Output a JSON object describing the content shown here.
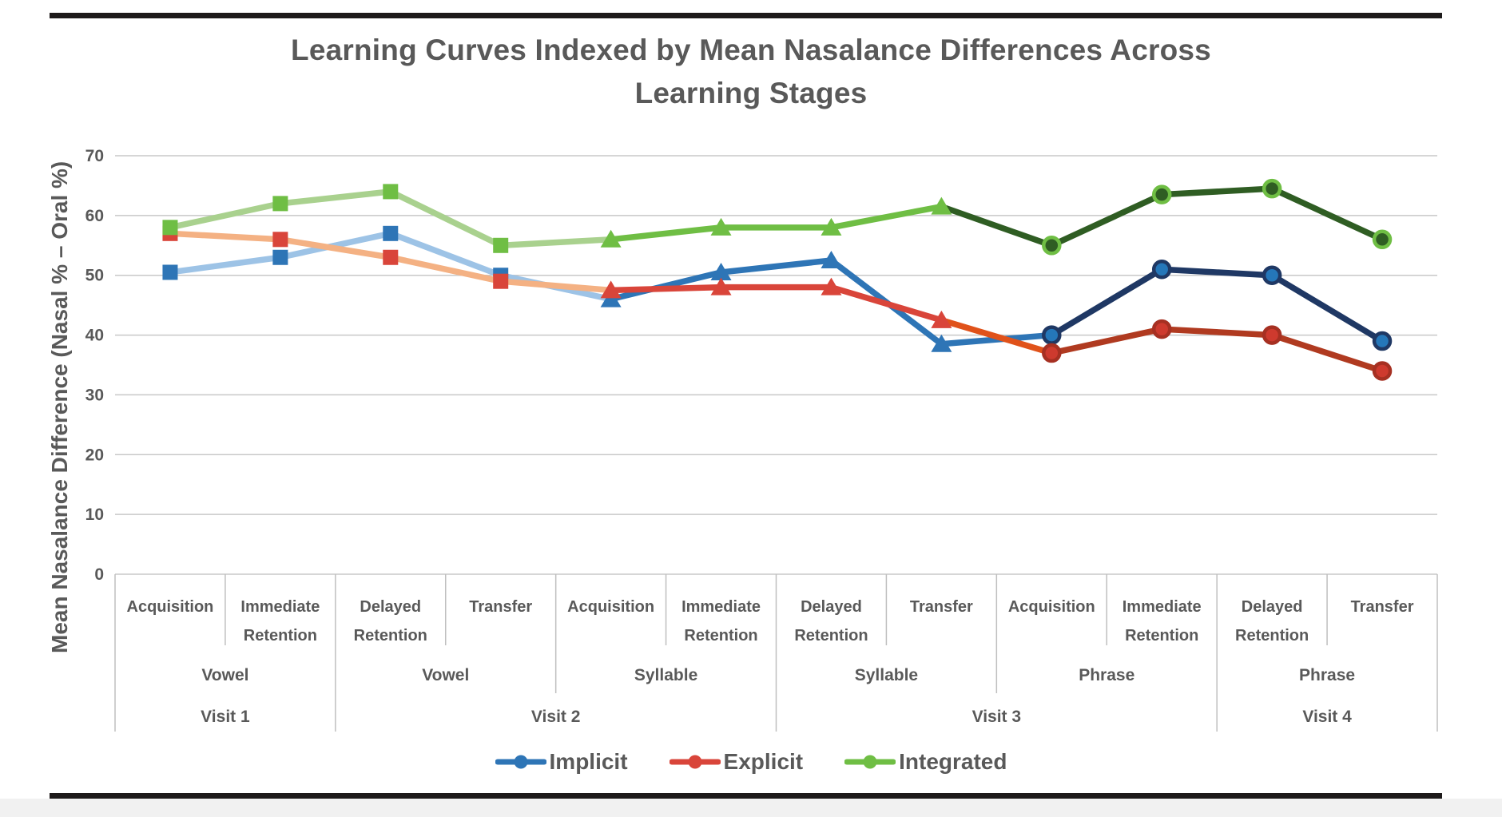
{
  "title": "Learning Curves Indexed by Mean Nasalance Differences Across Learning Stages",
  "y_axis": {
    "label": "Mean Nasalance Difference (Nasal % – Oral %)"
  },
  "legend": [
    {
      "name": "Implicit",
      "color": "#2E75B6"
    },
    {
      "name": "Explicit",
      "color": "#D9453A"
    },
    {
      "name": "Integrated",
      "color": "#6FBE44"
    }
  ],
  "chart_data": {
    "type": "line",
    "title": "Learning Curves Indexed by Mean Nasalance Differences Across Learning Stages",
    "ylabel": "Mean Nasalance Difference (Nasal % – Oral %)",
    "ylim": [
      0,
      70
    ],
    "yticks": [
      0,
      10,
      20,
      30,
      40,
      50,
      60,
      70
    ],
    "grid": true,
    "legend_position": "bottom",
    "stages": [
      "Acquisition",
      "Immediate Retention",
      "Delayed Retention",
      "Transfer",
      "Acquisition",
      "Immediate Retention",
      "Delayed Retention",
      "Transfer",
      "Acquisition",
      "Immediate Retention",
      "Delayed Retention",
      "Transfer"
    ],
    "groups": [
      {
        "label": "Vowel",
        "span": 2
      },
      {
        "label": "Vowel",
        "span": 2
      },
      {
        "label": "Syllable",
        "span": 2
      },
      {
        "label": "Syllable",
        "span": 2
      },
      {
        "label": "Phrase",
        "span": 2
      },
      {
        "label": "Phrase",
        "span": 2
      }
    ],
    "visits": [
      {
        "label": "Visit 1",
        "span": 2
      },
      {
        "label": "Visit 2",
        "span": 4
      },
      {
        "label": "Visit 3",
        "span": 4
      },
      {
        "label": "Visit 4",
        "span": 2
      }
    ],
    "marker_shapes": [
      "square",
      "square",
      "square",
      "square",
      "triangle",
      "triangle",
      "triangle",
      "triangle",
      "circle",
      "circle",
      "circle",
      "circle"
    ],
    "segment_phase": [
      "light",
      "light",
      "light",
      "light",
      "mid",
      "mid",
      "mid",
      "trans",
      "dark",
      "dark",
      "dark"
    ],
    "series": [
      {
        "name": "Implicit",
        "values": [
          50.5,
          53,
          57,
          50,
          46,
          50.5,
          52.5,
          38.5,
          40,
          51,
          50,
          39
        ],
        "colors": {
          "light": "#9DC3E6",
          "mid": "#2E75B6",
          "trans": "#2E75B6",
          "dark": "#1F3864",
          "circle_fill": "#2577B9",
          "circle_ring": "#1F3864"
        }
      },
      {
        "name": "Explicit",
        "values": [
          57,
          56,
          53,
          49,
          47.5,
          48,
          48,
          42.5,
          37,
          41,
          40,
          34
        ],
        "colors": {
          "light": "#F4B183",
          "mid": "#D9453A",
          "trans": "#E0521A",
          "dark": "#B03A20",
          "circle_fill": "#CE3A2E",
          "circle_ring": "#A63022"
        }
      },
      {
        "name": "Integrated",
        "values": [
          58,
          62,
          64,
          55,
          56,
          58,
          58,
          61.5,
          55,
          63.5,
          64.5,
          56
        ],
        "colors": {
          "light": "#A9D18E",
          "mid": "#6FBE44",
          "trans": "#2F5D23",
          "dark": "#2F5D23",
          "circle_fill": "#2F5D23",
          "circle_ring": "#6FBE44"
        }
      }
    ]
  }
}
